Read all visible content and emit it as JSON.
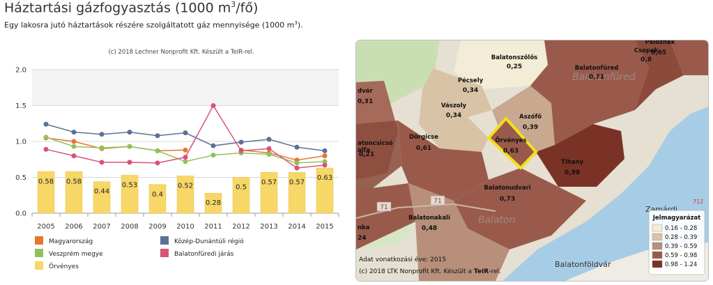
{
  "header": {
    "title_main": "Háztartási gázfogyasztás (1000 m",
    "title_sup": "3",
    "title_end": "/fő)",
    "subtitle_main": "Egy lakosra jutó háztartások részére szolgáltatott gáz mennyisége (1000 m",
    "subtitle_sup": "3",
    "subtitle_end": ")."
  },
  "chart_data": {
    "type": "bar",
    "credit": "(c) 2018 Lechner Nonprofit Kft. Készült a TeIR-rel.",
    "categories": [
      "2005",
      "2006",
      "2007",
      "2008",
      "2009",
      "2010",
      "2011",
      "2012",
      "2013",
      "2014",
      "2015"
    ],
    "ylim": [
      0,
      2.0
    ],
    "yticks": [
      "0.0",
      "0.5",
      "1.0",
      "1.5",
      "2.0"
    ],
    "bar_series": {
      "name": "Örvényes",
      "color": "#f7d767",
      "values": [
        0.58,
        0.58,
        0.44,
        0.53,
        0.4,
        0.52,
        0.28,
        0.5,
        0.57,
        0.57,
        0.63
      ],
      "labels": [
        "0.58",
        "0.58",
        "0.44",
        "0.53",
        "0.4",
        "0.52",
        "0.28",
        "0.5",
        "0.57",
        "0.57",
        "0.63"
      ]
    },
    "line_series": [
      {
        "name": "Magyarország",
        "color": "#e8762d",
        "values": [
          1.05,
          1.0,
          0.9,
          0.93,
          0.87,
          0.88,
          null,
          0.88,
          0.84,
          0.74,
          0.8
        ]
      },
      {
        "name": "Közép-Dunántúli régió",
        "color": "#5b7196",
        "values": [
          1.24,
          1.13,
          1.1,
          1.13,
          1.08,
          1.12,
          0.94,
          0.99,
          1.03,
          0.92,
          0.87
        ]
      },
      {
        "name": "Veszprém megye",
        "color": "#8fc25a",
        "values": [
          1.06,
          0.93,
          0.91,
          0.93,
          0.87,
          0.72,
          0.81,
          0.84,
          0.82,
          0.7,
          0.72
        ]
      },
      {
        "name": "Balatonfüredi járás",
        "color": "#d9527a",
        "values": [
          0.89,
          0.8,
          0.71,
          0.71,
          0.7,
          0.78,
          1.5,
          0.87,
          0.9,
          0.63,
          0.67
        ]
      }
    ],
    "legend": [
      {
        "label": "Magyarország",
        "color": "#e8762d"
      },
      {
        "label": "Közép-Dunántúli régió",
        "color": "#5b7196"
      },
      {
        "label": "Veszprém megye",
        "color": "#8fc25a"
      },
      {
        "label": "Balatonfüredi járás",
        "color": "#d9527a"
      },
      {
        "label": "Örvényes",
        "color": "#f7d767"
      }
    ]
  },
  "map": {
    "settlements": [
      {
        "name": "Balatonszőlős",
        "value": "0,25"
      },
      {
        "name": "Balatonfüred",
        "value": "0,71"
      },
      {
        "name": "Csopak",
        "value": "0,8"
      },
      {
        "name": "Paloznak",
        "value": "0,65"
      },
      {
        "name": "Pécsely",
        "value": "0,34"
      },
      {
        "name": "Vászoly",
        "value": "0,34"
      },
      {
        "name": "Aszófő",
        "value": "0,39"
      },
      {
        "name": "Dörgicse",
        "value": "0,61"
      },
      {
        "name": "Örvényes",
        "value": "0,63"
      },
      {
        "name": "Tihany",
        "value": "0,98"
      },
      {
        "name": "Balatonudvari",
        "value": "0,73"
      },
      {
        "name": "Balatonakali",
        "value": "0,48"
      }
    ],
    "partial_labels": [
      "dvár",
      "0,31",
      "atoncsicsó",
      "alfa",
      "0,21",
      "nka",
      "24"
    ],
    "background_text": [
      "Balatonfüred",
      "Balaton",
      "Zamárdi",
      "Balatonföldvár"
    ],
    "road_numbers": [
      "71",
      "71",
      "712"
    ],
    "year_note": "Adat vonatkozási éve: 2015",
    "credit_prefix": "(c) 2018 LTK Nonprofit Kft. Készült a ",
    "credit_bold": "TeIR",
    "credit_suffix": "-rel.",
    "legend_title": "Jelmagyarázat",
    "legend": [
      {
        "label": "0.16 - 0.28",
        "color": "#f3ecd6"
      },
      {
        "label": "0.28 - 0.39",
        "color": "#d9c3a6"
      },
      {
        "label": "0.39 - 0.59",
        "color": "#b88f7a"
      },
      {
        "label": "0.59 - 0.98",
        "color": "#9a5a4b"
      },
      {
        "label": "0.98 - 1.24",
        "color": "#7a3226"
      }
    ],
    "highlight_color": "#f2e01a"
  }
}
